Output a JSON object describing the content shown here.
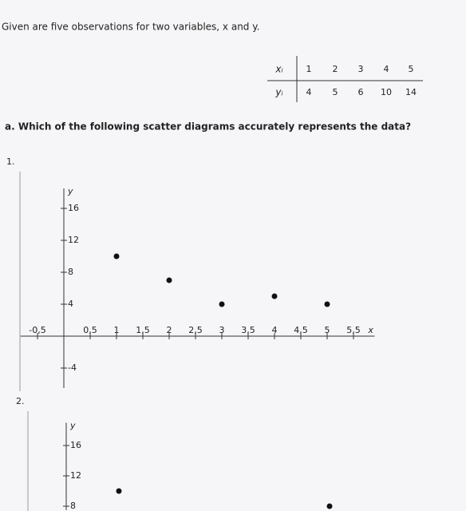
{
  "intro": "Given are five observations for two variables, x and y.",
  "table": {
    "row_labels": [
      "xᵢ",
      "yᵢ"
    ],
    "rows": [
      [
        1,
        2,
        3,
        4,
        5
      ],
      [
        4,
        5,
        6,
        10,
        14
      ]
    ]
  },
  "question": "a. Which of the following scatter diagrams accurately represents the data?",
  "option_labels": [
    "1.",
    "2."
  ],
  "chart_data": [
    {
      "type": "scatter",
      "x_label": "x",
      "y_label": "y",
      "color": "#111111",
      "x": [
        1,
        2,
        3,
        4,
        5
      ],
      "values": [
        10,
        7,
        4,
        5,
        4
      ],
      "xlim": [
        -0.7,
        5.9
      ],
      "ylim": [
        -6.5,
        18.5
      ],
      "xticks": [
        {
          "value": -0.5,
          "label": "-0,5"
        },
        {
          "value": 0.5,
          "label": "0,5"
        },
        1,
        {
          "value": 1.5,
          "label": "1,5"
        },
        2,
        {
          "value": 2.5,
          "label": "2,5"
        },
        3,
        {
          "value": 3.5,
          "label": "3,5"
        },
        4,
        {
          "value": 4.5,
          "label": "4,5"
        },
        5,
        {
          "value": 5.5,
          "label": "5,5"
        }
      ],
      "yticks": [
        -4,
        4,
        8,
        12,
        16
      ]
    },
    {
      "type": "scatter",
      "y_label": "y",
      "color": "#111111",
      "x": [
        1,
        5
      ],
      "values": [
        10,
        8
      ],
      "xlim": [
        -0.7,
        5.9
      ],
      "ylim": [
        7.5,
        19
      ],
      "yticks": [
        8,
        12,
        16
      ]
    }
  ]
}
